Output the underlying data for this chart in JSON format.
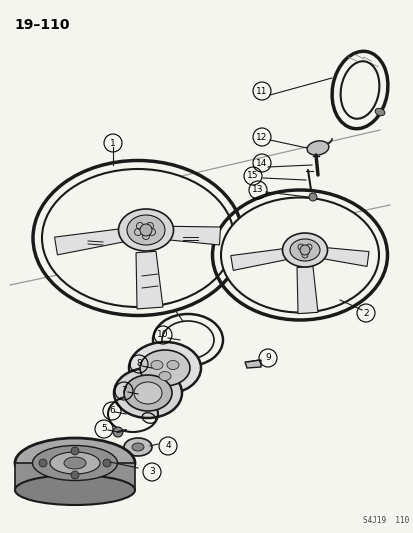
{
  "title": "19–110",
  "background_color": "#f5f5f0",
  "line_color": "#1a1a1a",
  "label_color": "#000000",
  "watermark": "S4J19  110",
  "fig_width": 4.14,
  "fig_height": 5.33,
  "dpi": 100
}
